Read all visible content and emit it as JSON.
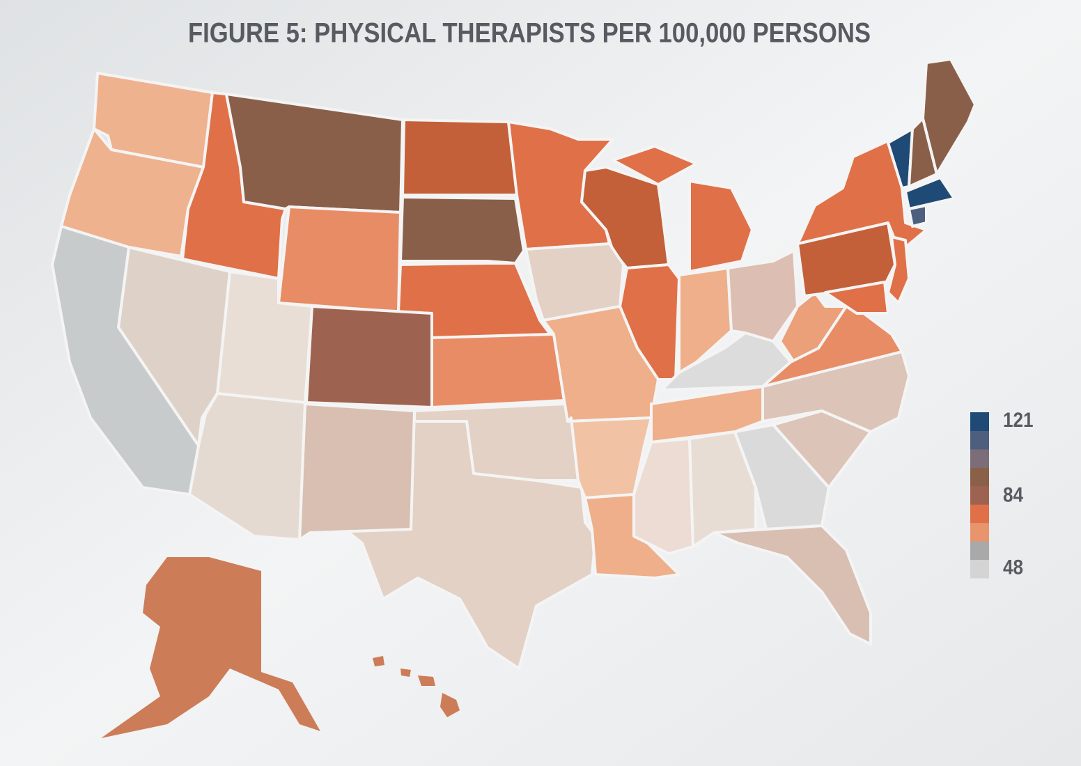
{
  "chart_data": {
    "type": "choropleth",
    "title": "FIGURE 5: PHYSICAL THERAPISTS PER 100,000 PERSONS",
    "legend": {
      "lim": [
        48,
        121
      ],
      "ticks": [
        48,
        84,
        121
      ],
      "colors": [
        "#d4d4d4",
        "#a9a9a9",
        "#e8956e",
        "#e07048",
        "#9e6350",
        "#8a6048",
        "#7b6e78",
        "#4e5f7e",
        "#1f4a75"
      ]
    }
  }
}
